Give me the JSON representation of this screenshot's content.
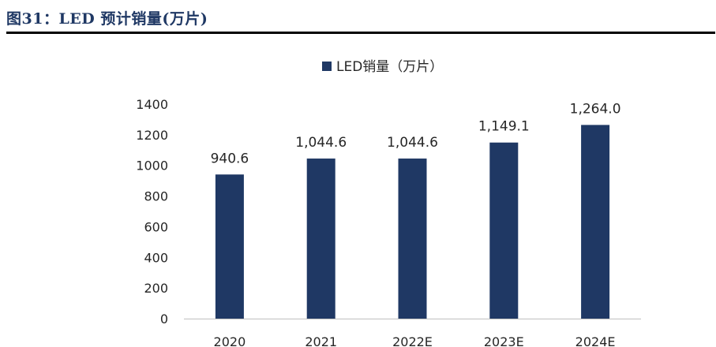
{
  "header": {
    "figure_title": "图31：LED 预计销量(万片)"
  },
  "colors": {
    "bar": "#1f3864",
    "axis": "#bfbfbf",
    "text": "#262626"
  },
  "chart_data": {
    "type": "bar",
    "title": "",
    "xlabel": "",
    "ylabel": "",
    "categories": [
      "2020",
      "2021",
      "2022E",
      "2023E",
      "2024E"
    ],
    "series": [
      {
        "name": "LED销量（万片）",
        "values": [
          940.6,
          1044.6,
          1044.6,
          1149.1,
          1264.0
        ],
        "labels": [
          "940.6",
          "1,044.6",
          "1,044.6",
          "1,149.1",
          "1,264.0"
        ]
      }
    ],
    "ylim": [
      0,
      1400
    ],
    "yticks": [
      0,
      200,
      400,
      600,
      800,
      1000,
      1200,
      1400
    ],
    "grid": false,
    "legend": "top-center"
  }
}
